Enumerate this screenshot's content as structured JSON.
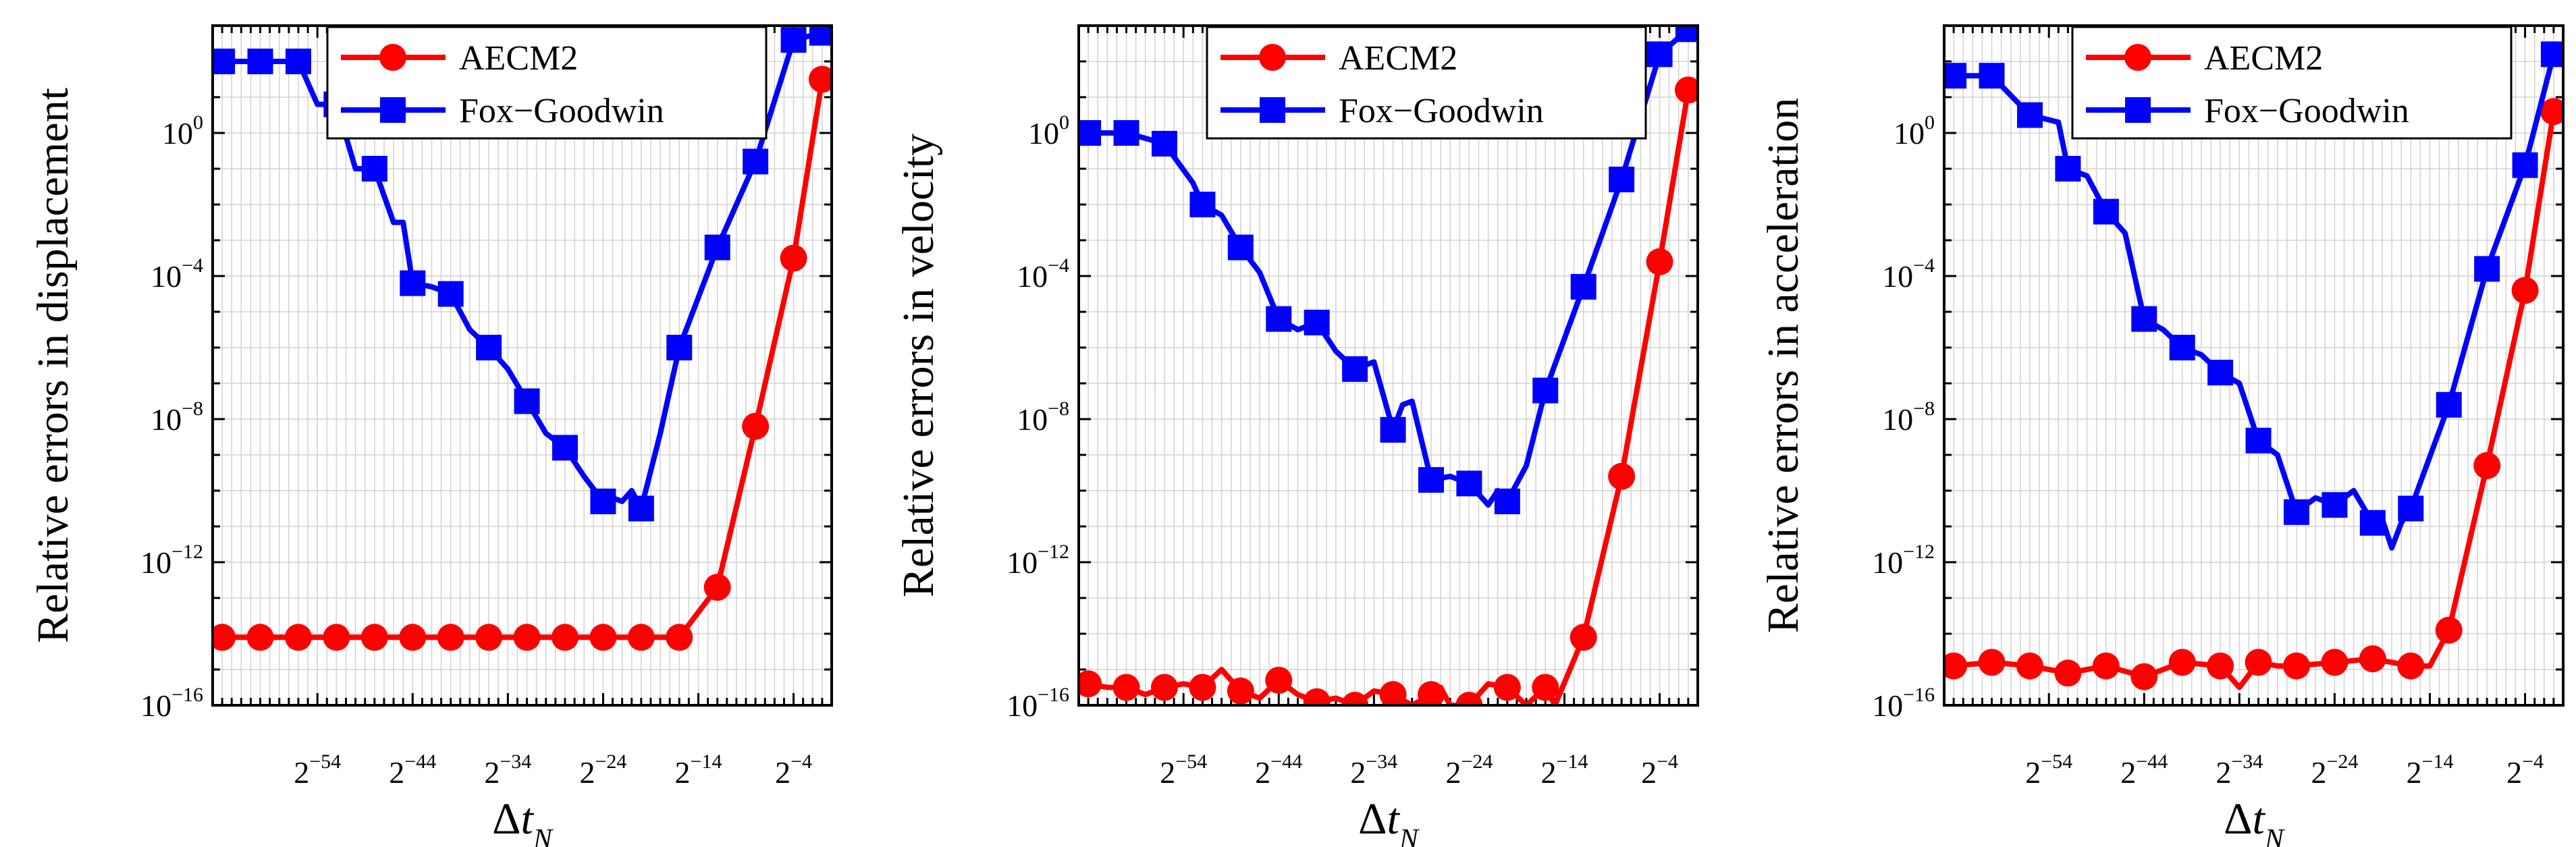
{
  "chart_data": [
    {
      "type": "line",
      "ylabel": "Relative errors in displacement",
      "xlabel_main": "Δt",
      "xlabel_sub": "N",
      "x_scale": "log2",
      "y_scale": "log10",
      "xlim_exp2": [
        -65,
        0
      ],
      "ylim_exp10": [
        -16,
        3
      ],
      "x_ticks": [
        {
          "base": "2",
          "exp": "−54",
          "value_exp2": -54
        },
        {
          "base": "2",
          "exp": "−44",
          "value_exp2": -44
        },
        {
          "base": "2",
          "exp": "−34",
          "value_exp2": -34
        },
        {
          "base": "2",
          "exp": "−24",
          "value_exp2": -24
        },
        {
          "base": "2",
          "exp": "−14",
          "value_exp2": -14
        },
        {
          "base": "2",
          "exp": "−4",
          "value_exp2": -4
        }
      ],
      "y_ticks": [
        {
          "base": "10",
          "exp": "0",
          "value_exp10": 0
        },
        {
          "base": "10",
          "exp": "−4",
          "value_exp10": -4
        },
        {
          "base": "10",
          "exp": "−8",
          "value_exp10": -8
        },
        {
          "base": "10",
          "exp": "−12",
          "value_exp10": -12
        },
        {
          "base": "10",
          "exp": "−16",
          "value_exp10": -16
        }
      ],
      "legend": {
        "position": "top",
        "entries": [
          "AECM2",
          "Fox−Goodwin"
        ]
      },
      "grid": true,
      "series": [
        {
          "name": "AECM2",
          "color": "#ff0000",
          "marker": "circle",
          "x_exp2": [
            -64,
            -60,
            -56,
            -52,
            -48,
            -44,
            -40,
            -36,
            -32,
            -28,
            -24,
            -20,
            -16,
            -12,
            -8,
            -4,
            -1
          ],
          "y_exp10": [
            -14.1,
            -14.1,
            -14.1,
            -14.1,
            -14.1,
            -14.1,
            -14.1,
            -14.1,
            -14.1,
            -14.1,
            -14.1,
            -14.1,
            -14.1,
            -12.7,
            -8.2,
            -3.5,
            1.5
          ],
          "marker_x_exp2": [
            -64,
            -60,
            -56,
            -52,
            -48,
            -44,
            -40,
            -36,
            -32,
            -28,
            -24,
            -20,
            -16,
            -12,
            -8,
            -4,
            -1
          ]
        },
        {
          "name": "Fox−Goodwin",
          "color": "#0000ff",
          "marker": "square",
          "x_exp2": [
            -64,
            -60,
            -56,
            -54,
            -52,
            -50,
            -48,
            -46,
            -45,
            -44,
            -42,
            -40,
            -38,
            -36,
            -34,
            -32,
            -30,
            -28,
            -26,
            -24,
            -23,
            -22,
            -21,
            -20,
            -18,
            -16,
            -12,
            -8,
            -4,
            -1
          ],
          "y_exp10": [
            2.0,
            2.0,
            2.0,
            0.8,
            0.8,
            -1.0,
            -1.0,
            -2.5,
            -2.5,
            -4.2,
            -4.3,
            -4.5,
            -5.5,
            -6.0,
            -6.6,
            -7.5,
            -8.4,
            -8.8,
            -9.6,
            -10.3,
            -10.2,
            -10.3,
            -10.0,
            -10.5,
            -8.4,
            -6.0,
            -3.2,
            -0.8,
            2.6,
            2.8
          ],
          "marker_x_exp2": [
            -64,
            -60,
            -56,
            -52,
            -48,
            -44,
            -40,
            -36,
            -32,
            -28,
            -24,
            -20,
            -16,
            -12,
            -8,
            -4,
            -1
          ]
        }
      ]
    },
    {
      "type": "line",
      "ylabel": "Relative errors in velocity",
      "xlabel_main": "Δt",
      "xlabel_sub": "N",
      "x_scale": "log2",
      "y_scale": "log10",
      "xlim_exp2": [
        -65,
        0
      ],
      "ylim_exp10": [
        -16,
        3
      ],
      "x_ticks": [
        {
          "base": "2",
          "exp": "−54",
          "value_exp2": -54
        },
        {
          "base": "2",
          "exp": "−44",
          "value_exp2": -44
        },
        {
          "base": "2",
          "exp": "−34",
          "value_exp2": -34
        },
        {
          "base": "2",
          "exp": "−24",
          "value_exp2": -24
        },
        {
          "base": "2",
          "exp": "−14",
          "value_exp2": -14
        },
        {
          "base": "2",
          "exp": "−4",
          "value_exp2": -4
        }
      ],
      "y_ticks": [
        {
          "base": "10",
          "exp": "0",
          "value_exp10": 0
        },
        {
          "base": "10",
          "exp": "−4",
          "value_exp10": -4
        },
        {
          "base": "10",
          "exp": "−8",
          "value_exp10": -8
        },
        {
          "base": "10",
          "exp": "−12",
          "value_exp10": -12
        },
        {
          "base": "10",
          "exp": "−16",
          "value_exp10": -16
        }
      ],
      "legend": {
        "position": "top",
        "entries": [
          "AECM2",
          "Fox−Goodwin"
        ]
      },
      "grid": true,
      "series": [
        {
          "name": "AECM2",
          "color": "#ff0000",
          "marker": "circle",
          "x_exp2": [
            -65,
            -64,
            -62,
            -60,
            -58,
            -56,
            -54,
            -52,
            -50,
            -48,
            -46,
            -44,
            -42,
            -40,
            -38,
            -36,
            -34,
            -32,
            -30,
            -28,
            -27,
            -26,
            -25,
            -24,
            -22,
            -20,
            -18,
            -16,
            -15,
            -12,
            -8,
            -4,
            -1
          ],
          "y_exp10": [
            -15.2,
            -15.4,
            -15.5,
            -15.5,
            -15.7,
            -15.5,
            -15.4,
            -15.5,
            -15.0,
            -15.6,
            -15.8,
            -15.3,
            -15.7,
            -15.9,
            -15.8,
            -16.0,
            -15.6,
            -15.7,
            -16.0,
            -15.7,
            -15.5,
            -16.0,
            -16.0,
            -16.0,
            -15.4,
            -15.5,
            -16.0,
            -15.5,
            -16.0,
            -14.1,
            -9.6,
            -3.6,
            1.2
          ],
          "marker_x_exp2": [
            -64,
            -60,
            -56,
            -52,
            -48,
            -44,
            -40,
            -36,
            -32,
            -28,
            -24,
            -20,
            -16,
            -12,
            -8,
            -4,
            -1
          ]
        },
        {
          "name": "Fox−Goodwin",
          "color": "#0000ff",
          "marker": "square",
          "x_exp2": [
            -64,
            -60,
            -56,
            -53,
            -52,
            -50,
            -48,
            -46,
            -44,
            -42,
            -40,
            -38,
            -36,
            -34,
            -32,
            -31,
            -30,
            -28,
            -26,
            -24,
            -22,
            -21,
            -20,
            -18,
            -16,
            -12,
            -8,
            -4,
            -1
          ],
          "y_exp10": [
            0.0,
            0.0,
            -0.3,
            -1.4,
            -2.0,
            -2.3,
            -3.2,
            -3.9,
            -5.2,
            -5.5,
            -5.3,
            -6.1,
            -6.6,
            -6.4,
            -8.3,
            -7.6,
            -7.5,
            -9.7,
            -9.6,
            -9.8,
            -10.4,
            -10.0,
            -10.3,
            -9.3,
            -7.2,
            -4.3,
            -1.3,
            2.2,
            2.9
          ],
          "marker_x_exp2": [
            -64,
            -60,
            -56,
            -52,
            -48,
            -44,
            -40,
            -36,
            -32,
            -28,
            -24,
            -20,
            -16,
            -12,
            -8,
            -4,
            -1
          ]
        }
      ]
    },
    {
      "type": "line",
      "ylabel": "Relative errors in acceleration",
      "xlabel_main": "Δt",
      "xlabel_sub": "N",
      "x_scale": "log2",
      "y_scale": "log10",
      "xlim_exp2": [
        -65,
        0
      ],
      "ylim_exp10": [
        -16,
        3
      ],
      "x_ticks": [
        {
          "base": "2",
          "exp": "−54",
          "value_exp2": -54
        },
        {
          "base": "2",
          "exp": "−44",
          "value_exp2": -44
        },
        {
          "base": "2",
          "exp": "−34",
          "value_exp2": -34
        },
        {
          "base": "2",
          "exp": "−24",
          "value_exp2": -24
        },
        {
          "base": "2",
          "exp": "−14",
          "value_exp2": -14
        },
        {
          "base": "2",
          "exp": "−4",
          "value_exp2": -4
        }
      ],
      "y_ticks": [
        {
          "base": "10",
          "exp": "0",
          "value_exp10": 0
        },
        {
          "base": "10",
          "exp": "−4",
          "value_exp10": -4
        },
        {
          "base": "10",
          "exp": "−8",
          "value_exp10": -8
        },
        {
          "base": "10",
          "exp": "−12",
          "value_exp10": -12
        },
        {
          "base": "10",
          "exp": "−16",
          "value_exp10": -16
        }
      ],
      "legend": {
        "position": "top",
        "entries": [
          "AECM2",
          "Fox−Goodwin"
        ]
      },
      "grid": true,
      "series": [
        {
          "name": "AECM2",
          "color": "#ff0000",
          "marker": "circle",
          "x_exp2": [
            -65,
            -64,
            -60,
            -56,
            -52,
            -48,
            -44,
            -40,
            -36,
            -34,
            -32,
            -30,
            -28,
            -24,
            -20,
            -16,
            -14,
            -12,
            -8,
            -4,
            -1
          ],
          "y_exp10": [
            -14.8,
            -14.9,
            -14.8,
            -14.9,
            -15.1,
            -14.9,
            -15.2,
            -14.8,
            -14.9,
            -15.5,
            -14.8,
            -14.9,
            -14.9,
            -14.8,
            -14.7,
            -14.9,
            -14.9,
            -13.9,
            -9.3,
            -4.4,
            0.6
          ],
          "marker_x_exp2": [
            -64,
            -60,
            -56,
            -52,
            -48,
            -44,
            -40,
            -36,
            -32,
            -28,
            -24,
            -20,
            -16,
            -12,
            -8,
            -4,
            -1
          ]
        },
        {
          "name": "Fox−Goodwin",
          "color": "#0000ff",
          "marker": "square",
          "x_exp2": [
            -64,
            -60,
            -56,
            -53,
            -52,
            -50,
            -48,
            -46,
            -44,
            -42,
            -40,
            -38,
            -36,
            -34,
            -32,
            -30,
            -28,
            -26,
            -24,
            -22,
            -20,
            -19,
            -18,
            -17,
            -16,
            -12,
            -8,
            -4,
            -1
          ],
          "y_exp10": [
            1.6,
            1.6,
            0.5,
            0.3,
            -1.0,
            -1.2,
            -2.2,
            -2.8,
            -5.2,
            -5.5,
            -6.0,
            -6.2,
            -6.7,
            -7.0,
            -8.6,
            -9.0,
            -10.6,
            -10.2,
            -10.4,
            -10.0,
            -10.9,
            -10.8,
            -11.6,
            -10.9,
            -10.5,
            -7.6,
            -3.8,
            -0.9,
            2.2
          ],
          "marker_x_exp2": [
            -64,
            -60,
            -56,
            -52,
            -48,
            -44,
            -40,
            -36,
            -32,
            -28,
            -24,
            -20,
            -16,
            -12,
            -8,
            -4,
            -1
          ]
        }
      ]
    }
  ]
}
